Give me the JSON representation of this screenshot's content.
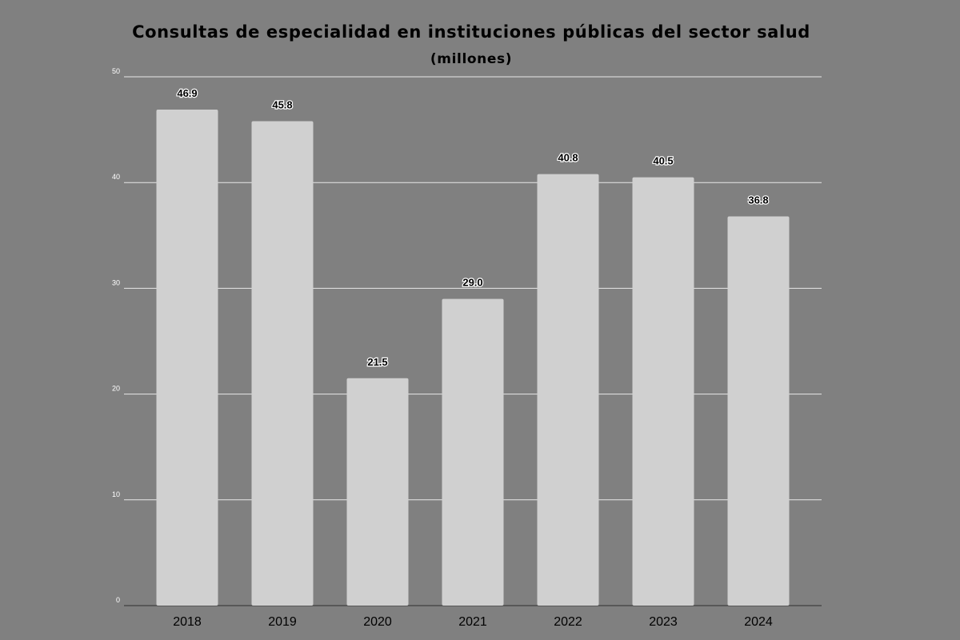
{
  "chart_data": {
    "type": "bar",
    "title": "Consultas de especialidad en instituciones públicas del sector salud",
    "subtitle": "(millones)",
    "categories": [
      "2018",
      "2019",
      "2020",
      "2021",
      "2022",
      "2023",
      "2024"
    ],
    "values": [
      46.9,
      45.8,
      21.5,
      29.0,
      40.8,
      40.5,
      36.8
    ],
    "value_labels": [
      "46.9",
      "45.8",
      "21.5",
      "29.0",
      "40.8",
      "40.5",
      "36.8"
    ],
    "ylim": [
      0,
      50
    ],
    "yticks": [
      0,
      10,
      20,
      30,
      40,
      50
    ],
    "grid": true,
    "legend": "none",
    "colors": {
      "background": "#808080",
      "bar": "#d0d0d0",
      "gridline": "#e8e8e8",
      "axis": "#4a4a4a",
      "text": "#000000"
    }
  }
}
